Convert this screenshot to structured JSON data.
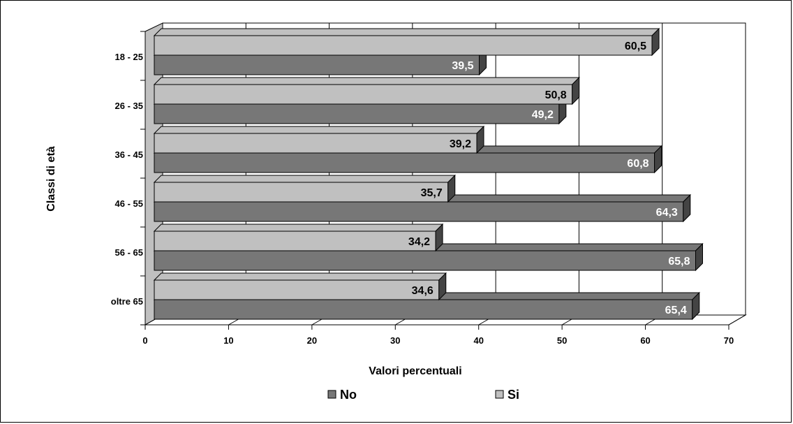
{
  "colors": {
    "no": "#777777",
    "si": "#c0c0c0",
    "wall_left": "#c0c0c0",
    "floor": "#ffffff",
    "grid": "#000000"
  },
  "chart_data": {
    "type": "bar",
    "orientation": "horizontal",
    "title": "",
    "xlabel": "Valori percentuali",
    "ylabel": "Classi di età",
    "xlim": [
      0,
      70
    ],
    "xticks": [
      "0",
      "10",
      "20",
      "30",
      "40",
      "50",
      "60",
      "70"
    ],
    "grid": true,
    "legend_position": "bottom",
    "categories": [
      "18 - 25",
      "26 - 35",
      "36 - 45",
      "46 - 55",
      "56 - 65",
      "oltre 65"
    ],
    "series": [
      {
        "name": "No",
        "values": [
          39.5,
          49.2,
          60.8,
          64.3,
          65.8,
          65.4
        ],
        "labels": [
          "39,5",
          "49,2",
          "60,8",
          "64,3",
          "65,8",
          "65,4"
        ]
      },
      {
        "name": "Si",
        "values": [
          60.5,
          50.8,
          39.2,
          35.7,
          34.2,
          34.6
        ],
        "labels": [
          "60,5",
          "50,8",
          "39,2",
          "35,7",
          "34,2",
          "34,6"
        ]
      }
    ]
  }
}
